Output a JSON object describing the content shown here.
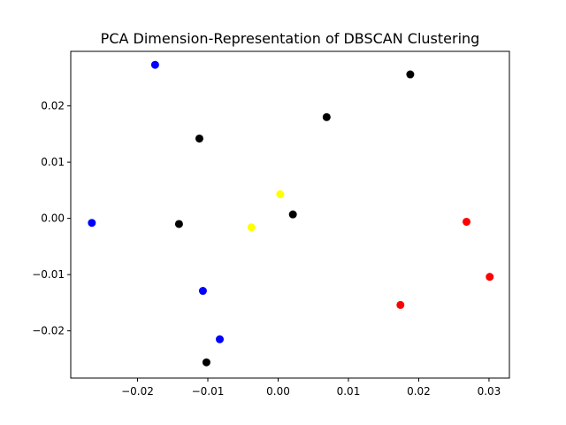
{
  "chart_data": {
    "type": "scatter",
    "title": "PCA Dimension-Representation of DBSCAN Clustering",
    "xlabel": "",
    "ylabel": "",
    "xlim": [
      -0.0295,
      0.0329
    ],
    "ylim": [
      -0.0284,
      0.0297
    ],
    "xticks": [
      -0.02,
      -0.01,
      0.0,
      0.01,
      0.02,
      0.03
    ],
    "xtick_labels": [
      "−0.02",
      "−0.01",
      "0.00",
      "0.01",
      "0.02",
      "0.03"
    ],
    "yticks": [
      -0.02,
      -0.01,
      0.0,
      0.01,
      0.02
    ],
    "ytick_labels": [
      "−0.02",
      "−0.01",
      "0.00",
      "0.01",
      "0.02"
    ],
    "grid": false,
    "points": [
      {
        "x": -0.0175,
        "y": 0.0273,
        "color": "#0000ff"
      },
      {
        "x": -0.0265,
        "y": -0.0008,
        "color": "#0000ff"
      },
      {
        "x": -0.0107,
        "y": -0.0129,
        "color": "#0000ff"
      },
      {
        "x": -0.0083,
        "y": -0.0215,
        "color": "#0000ff"
      },
      {
        "x": 0.0188,
        "y": 0.0256,
        "color": "#000000"
      },
      {
        "x": 0.0069,
        "y": 0.018,
        "color": "#000000"
      },
      {
        "x": -0.0112,
        "y": 0.0142,
        "color": "#000000"
      },
      {
        "x": -0.0141,
        "y": -0.001,
        "color": "#000000"
      },
      {
        "x": 0.0021,
        "y": 0.0007,
        "color": "#000000"
      },
      {
        "x": -0.0102,
        "y": -0.0256,
        "color": "#000000"
      },
      {
        "x": 0.0003,
        "y": 0.0043,
        "color": "#ffff00"
      },
      {
        "x": -0.0038,
        "y": -0.0016,
        "color": "#ffff00"
      },
      {
        "x": 0.0268,
        "y": -0.0006,
        "color": "#ff0000"
      },
      {
        "x": 0.0301,
        "y": -0.0104,
        "color": "#ff0000"
      },
      {
        "x": 0.0174,
        "y": -0.0154,
        "color": "#ff0000"
      }
    ]
  }
}
